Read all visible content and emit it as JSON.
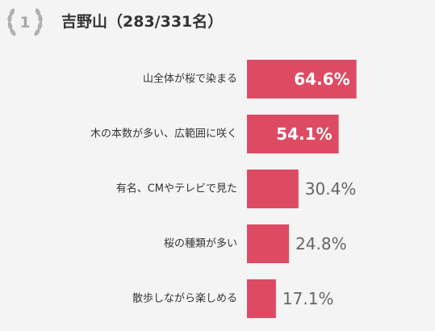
{
  "header": {
    "rank": "1",
    "title": "吉野山（283/331名）",
    "rank_icon": "laurel-wreath-icon"
  },
  "colors": {
    "bar": "#dd4b63",
    "value_inside": "#ffffff",
    "value_outside": "#666666",
    "label": "#333333",
    "laurel": "#b0b0b0"
  },
  "chart_data": {
    "type": "bar",
    "orientation": "horizontal",
    "unit": "%",
    "categories": [
      "山全体が桜で染まる",
      "木の本数が多い、広範囲に咲く",
      "有名、CMやテレビで見た",
      "桜の種類が多い",
      "散歩しながら楽しめる"
    ],
    "values": [
      64.6,
      54.1,
      30.4,
      24.8,
      17.1
    ],
    "value_labels": [
      "64.6%",
      "54.1%",
      "30.4%",
      "24.8%",
      "17.1%"
    ],
    "xlim": [
      0,
      100
    ],
    "grid": false,
    "legend": "none"
  }
}
